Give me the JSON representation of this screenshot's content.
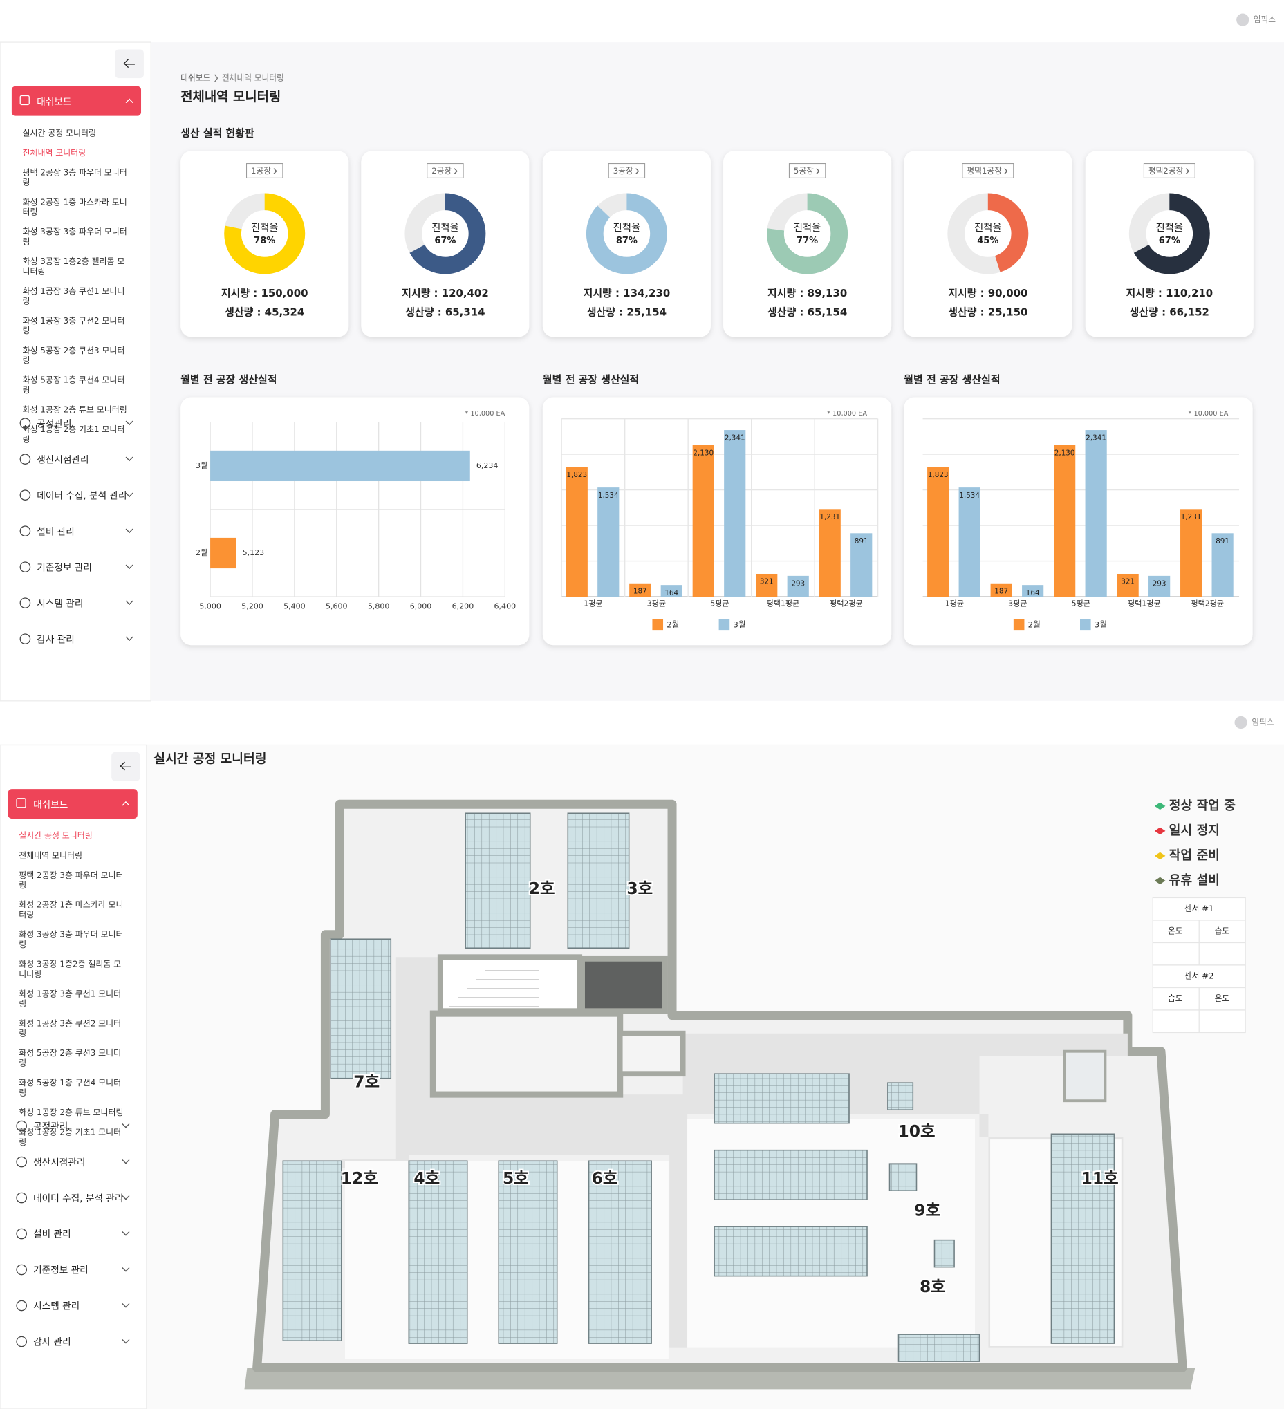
{
  "dashboard": {
    "header": {
      "user": "임픽스"
    },
    "sidebar": {
      "menu": "대쉬보드",
      "items": [
        "실시간 공정 모니터링",
        "전체내역 모니터링",
        "평택 2공장 3층 파우더 모니터링",
        "화성 2공장 1층 마스카라 모니터링",
        "화성 3공장 3층 파우더 모니터링",
        "화성 3공장 1층2층 젤리돔 모니터링",
        "화성 1공장 3층 쿠션1 모니터링",
        "화성 1공장 3층 쿠션2 모니터링",
        "화성 5공장 2층 쿠션3 모니터링",
        "화성 5공장 1층 쿠션4 모니터링",
        "화성 1공장 2층 튜브 모니터링",
        "화성 1공장 2층 기초1 모니터링"
      ],
      "active": 1,
      "groups": [
        "공정관리",
        "생산시점관리",
        "데이터 수집, 분석 관리",
        "설비 관리",
        "기준정보 관리",
        "시스템 관리",
        "감사 관리"
      ]
    },
    "breadcrumb": [
      "대쉬보드",
      "전체내역 모니터링"
    ],
    "title": "전체내역 모니터링",
    "section": "생산 실적 현황판",
    "progress_label": "진척율",
    "cards": [
      {
        "factory": "1공장",
        "value": 78,
        "value_label": "78%",
        "color": "#ffd400",
        "order": "지시량 : 150,000",
        "output": "생산량 : 45,324"
      },
      {
        "factory": "2공장",
        "value": 67,
        "value_label": "67%",
        "color": "#3c5a87",
        "order": "지시량 : 120,402",
        "output": "생산량 : 65,314"
      },
      {
        "factory": "3공장",
        "value": 87,
        "value_label": "87%",
        "color": "#9cc4de",
        "order": "지시량 : 134,230",
        "output": "생산량 : 25,154"
      },
      {
        "factory": "5공장",
        "value": 77,
        "value_label": "77%",
        "color": "#9ccab4",
        "order": "지시량 : 89,130",
        "output": "생산량 : 65,154"
      },
      {
        "factory": "평택1공장",
        "value": 45,
        "value_label": "45%",
        "color": "#ee6a4a",
        "order": "지시량 : 90,000",
        "output": "생산량 : 25,150"
      },
      {
        "factory": "평택2공장",
        "value": 67,
        "value_label": "67%",
        "color": "#27303f",
        "order": "지시량 : 110,210",
        "output": "생산량 : 66,152"
      }
    ],
    "charts": [
      {
        "type": "hbar",
        "title": "월별 전 공장 생산실적",
        "note": "* 10,000 EA",
        "categories": [
          "3월",
          "2월"
        ],
        "values": [
          6234,
          5123
        ],
        "value_labels": [
          "6,234",
          "5,123"
        ],
        "colors": [
          "#9cc4de",
          "#fb9233"
        ],
        "xlim": [
          5000,
          6400
        ],
        "xticks": [
          {
            "value": 5000,
            "label": "5,000"
          },
          {
            "value": 5200,
            "label": "5,200"
          },
          {
            "value": 5400,
            "label": "5,400"
          },
          {
            "value": 5600,
            "label": "5,600"
          },
          {
            "value": 5800,
            "label": "5,800"
          },
          {
            "value": 6000,
            "label": "6,000"
          },
          {
            "value": 6200,
            "label": "6,200"
          },
          {
            "value": 6400,
            "label": "6,400"
          }
        ],
        "grid": true
      },
      {
        "type": "bar",
        "title": "월별 전 공장 생산실적",
        "note": "* 10,000 EA",
        "categories": [
          "1평균",
          "3평균",
          "5평균",
          "평택1평균",
          "평택2평균"
        ],
        "series": [
          {
            "name": "2월",
            "color": "#fb9233",
            "values": [
              1823,
              187,
              2130,
              321,
              1231
            ],
            "value_labels": [
              "1,823",
              "187",
              "2,130",
              "321",
              "1,231"
            ]
          },
          {
            "name": "3월",
            "color": "#9cc4de",
            "values": [
              1534,
              164,
              2341,
              293,
              891
            ],
            "value_labels": [
              "1,534",
              "164",
              "2,341",
              "293",
              "891"
            ]
          }
        ],
        "ylim": [
          0,
          2500
        ],
        "yticks": [
          0,
          500,
          1000,
          1500,
          2000,
          2500
        ],
        "grid": true,
        "vgrid": true
      },
      {
        "type": "bar",
        "title": "월별 전 공장 생산실적",
        "note": "* 10,000 EA",
        "categories": [
          "1평균",
          "3평균",
          "5평균",
          "평택1평균",
          "평택2평균"
        ],
        "series": [
          {
            "name": "2월",
            "color": "#fb9233",
            "values": [
              1823,
              187,
              2130,
              321,
              1231
            ],
            "value_labels": [
              "1,823",
              "187",
              "2,130",
              "321",
              "1,231"
            ]
          },
          {
            "name": "3월",
            "color": "#9cc4de",
            "values": [
              1534,
              164,
              2341,
              293,
              891
            ],
            "value_labels": [
              "1,534",
              "164",
              "2,341",
              "293",
              "891"
            ]
          }
        ],
        "ylim": [
          0,
          2500
        ],
        "yticks": [
          0,
          500,
          1000,
          1500,
          2000,
          2500
        ],
        "grid": true,
        "vgrid": false
      }
    ]
  },
  "monitoring": {
    "header": {
      "user": "임픽스"
    },
    "sidebar": {
      "menu": "대쉬보드",
      "items": [
        "실시간 공정 모니터링",
        "전체내역 모니터링",
        "평택 2공장 3층 파우더 모니터링",
        "화성 2공장 1층 마스카라 모니터링",
        "화성 3공장 3층 파우더 모니터링",
        "화성 3공장 1층2층 젤리돔 모니터링",
        "화성 1공장 3층 쿠션1 모니터링",
        "화성 1공장 3층 쿠션2 모니터링",
        "화성 5공장 2층 쿠션3 모니터링",
        "화성 5공장 1층 쿠션4 모니터링",
        "화성 1공장 2층 튜브 모니터링",
        "화성 1공장 2층 기초1 모니터링"
      ],
      "active": 0,
      "groups": [
        "공정관리",
        "생산시점관리",
        "데이터 수집, 분석 관리",
        "설비 관리",
        "기준정보 관리",
        "시스템 관리",
        "감사 관리"
      ]
    },
    "title": "실시간 공정 모니터링",
    "zones": [
      "2호",
      "3호",
      "7호",
      "10호",
      "12호",
      "4호",
      "5호",
      "6호",
      "11호",
      "9호",
      "8호"
    ],
    "legend": [
      {
        "name": "정상 작업 중",
        "color": "#3cb878"
      },
      {
        "name": "일시 정지",
        "color": "#e6363f"
      },
      {
        "name": "작업 준비",
        "color": "#f0c419"
      },
      {
        "name": "유휴 설비",
        "color": "#6b7a55"
      }
    ],
    "sensors": [
      {
        "name": "센서 #1",
        "columns": [
          "온도",
          "습도"
        ]
      },
      {
        "name": "센서 #2",
        "columns": [
          "습도",
          "온도"
        ]
      }
    ]
  }
}
